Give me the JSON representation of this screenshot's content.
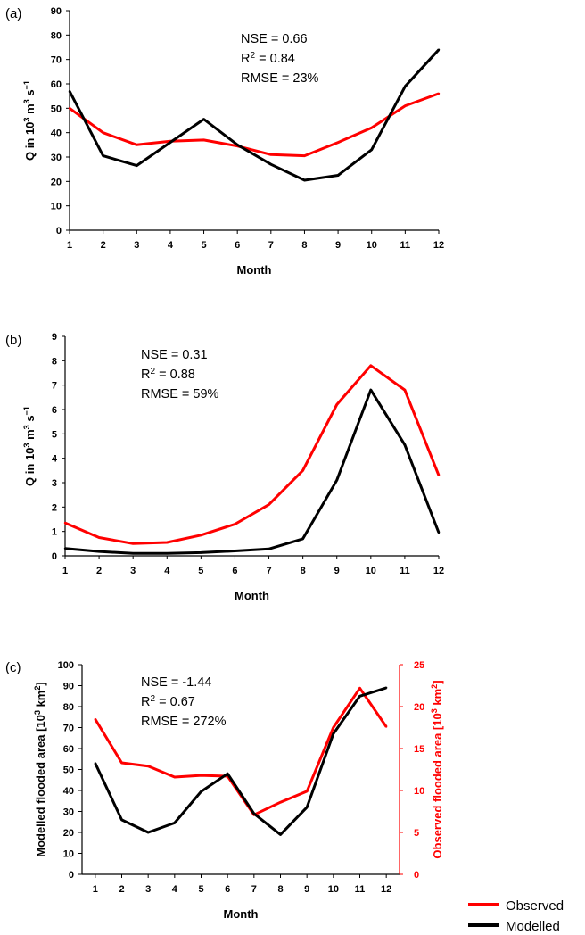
{
  "colors": {
    "observed": "#ff0000",
    "modelled": "#000000",
    "axis": "#000000"
  },
  "legend": {
    "observed": "Observed",
    "modelled": "Modelled"
  },
  "chart_data": [
    {
      "type": "line",
      "panel_label": "(a)",
      "xlabel": "Month",
      "ylabel": "Q in 10³ m³ s⁻¹",
      "x": [
        1,
        2,
        3,
        4,
        5,
        6,
        7,
        8,
        9,
        10,
        11,
        12
      ],
      "ylim": [
        0,
        90
      ],
      "yticks": [
        0,
        10,
        20,
        30,
        40,
        50,
        60,
        70,
        80,
        90
      ],
      "stats": [
        "NSE = 0.66",
        "R² = 0.84",
        "RMSE = 23%"
      ],
      "series": [
        {
          "name": "Observed",
          "axis": "left",
          "values": [
            50,
            40,
            35,
            36.5,
            37,
            34.5,
            31,
            30.5,
            36,
            42,
            51,
            56
          ]
        },
        {
          "name": "Modelled",
          "axis": "left",
          "values": [
            57,
            30.5,
            26.5,
            36,
            45.5,
            35,
            27,
            20.5,
            22.5,
            33,
            59,
            74
          ]
        }
      ]
    },
    {
      "type": "line",
      "panel_label": "(b)",
      "xlabel": "Month",
      "ylabel": "Q in 10³ m³ s⁻¹",
      "x": [
        1,
        2,
        3,
        4,
        5,
        6,
        7,
        8,
        9,
        10,
        11,
        12
      ],
      "ylim": [
        0,
        9
      ],
      "yticks": [
        0,
        1,
        2,
        3,
        4,
        5,
        6,
        7,
        8,
        9
      ],
      "stats": [
        "NSE = 0.31",
        "R² = 0.88",
        "RMSE = 59%"
      ],
      "series": [
        {
          "name": "Observed",
          "axis": "left",
          "values": [
            1.35,
            0.75,
            0.5,
            0.55,
            0.85,
            1.3,
            2.1,
            3.5,
            6.2,
            7.8,
            6.8,
            3.3
          ]
        },
        {
          "name": "Modelled",
          "axis": "left",
          "values": [
            0.3,
            0.18,
            0.1,
            0.1,
            0.13,
            0.2,
            0.28,
            0.7,
            3.1,
            6.8,
            4.55,
            0.95
          ]
        }
      ]
    },
    {
      "type": "line",
      "panel_label": "(c)",
      "xlabel": "Month",
      "ylabel": "Modelled flooded area [10³ km²]",
      "y2label": "Observed flooded area [10³ km²]",
      "x": [
        1,
        2,
        3,
        4,
        5,
        6,
        7,
        8,
        9,
        10,
        11,
        12
      ],
      "ylim": [
        0,
        100
      ],
      "yticks": [
        0,
        10,
        20,
        30,
        40,
        50,
        60,
        70,
        80,
        90,
        100
      ],
      "y2lim": [
        0,
        25
      ],
      "y2ticks": [
        0,
        5,
        10,
        15,
        20,
        25
      ],
      "stats": [
        "NSE = -1.44",
        "R² = 0.67",
        "RMSE = 272%"
      ],
      "series": [
        {
          "name": "Observed",
          "axis": "right",
          "values": [
            18.5,
            13.3,
            12.9,
            11.6,
            11.8,
            11.7,
            7.1,
            8.6,
            9.9,
            17.5,
            22.2,
            17.6
          ]
        },
        {
          "name": "Modelled",
          "axis": "left",
          "values": [
            53,
            26,
            20,
            24.5,
            39.5,
            48,
            29,
            19,
            32,
            67,
            85,
            89
          ]
        }
      ]
    }
  ]
}
